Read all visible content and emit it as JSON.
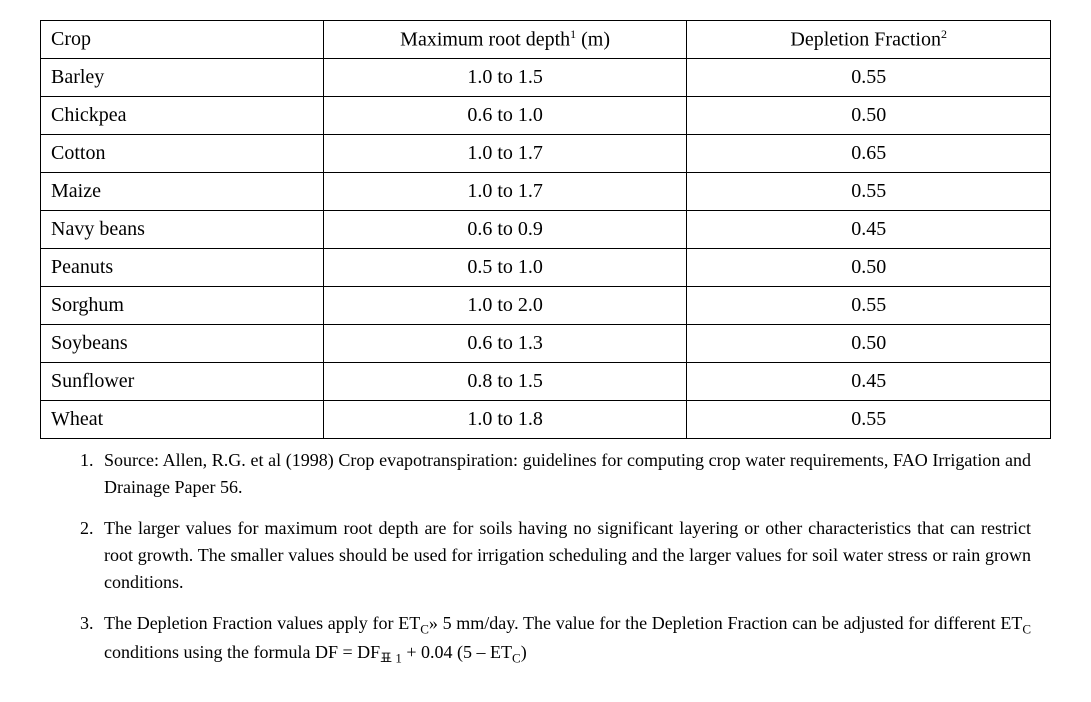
{
  "table": {
    "type": "table",
    "columns": [
      {
        "key": "crop",
        "label": "Crop",
        "sup": "",
        "align": "left",
        "width": "28%"
      },
      {
        "key": "depth",
        "label": "Maximum root depth",
        "sup": "1",
        "suffix": " (m)",
        "align": "center",
        "width": "36%"
      },
      {
        "key": "frac",
        "label": "Depletion Fraction",
        "sup": "2",
        "suffix": "",
        "align": "center",
        "width": "36%"
      }
    ],
    "rows": [
      {
        "crop": "Barley",
        "depth": "1.0 to 1.5",
        "frac": "0.55"
      },
      {
        "crop": "Chickpea",
        "depth": "0.6 to 1.0",
        "frac": "0.50"
      },
      {
        "crop": "Cotton",
        "depth": "1.0 to 1.7",
        "frac": "0.65"
      },
      {
        "crop": "Maize",
        "depth": "1.0 to 1.7",
        "frac": "0.55"
      },
      {
        "crop": "Navy beans",
        "depth": "0.6 to 0.9",
        "frac": "0.45"
      },
      {
        "crop": "Peanuts",
        "depth": "0.5 to 1.0",
        "frac": "0.50"
      },
      {
        "crop": "Sorghum",
        "depth": "1.0 to 2.0",
        "frac": "0.55"
      },
      {
        "crop": "Soybeans",
        "depth": "0.6 to 1.3",
        "frac": "0.50"
      },
      {
        "crop": "Sunflower",
        "depth": "0.8 to 1.5",
        "frac": "0.45"
      },
      {
        "crop": "Wheat",
        "depth": "1.0 to 1.8",
        "frac": "0.55"
      }
    ],
    "border_color": "#000000",
    "background_color": "#ffffff",
    "header_fontsize": 20,
    "cell_fontsize": 20
  },
  "notes": [
    {
      "num": "1.",
      "text": "Source: Allen, R.G. et al (1998) Crop evapotranspiration: guidelines for computing crop water requirements, FAO Irrigation and Drainage Paper 56."
    },
    {
      "num": "2.",
      "text": "The larger values for maximum root depth are for soils having no significant layering or other characteristics that can restrict root growth. The smaller values should be used for irrigation scheduling and the larger values for soil water stress or rain grown conditions."
    },
    {
      "num": "3.",
      "text_html": "The Depletion Fraction values apply for ET<sub class=\"subscript\">C</sub>» 5 mm/day. The value for the Depletion Fraction can be adjusted for different ET<sub class=\"subscript\">C</sub> conditions using the formula DF = DF<sub class=\"subscript\">표 1</sub> + 0.04 (5 – ET<sub class=\"subscript\">C</sub>)"
    }
  ],
  "colors": {
    "text": "#000000",
    "background": "#ffffff",
    "border": "#000000"
  }
}
